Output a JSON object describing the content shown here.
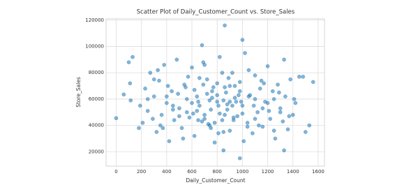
{
  "chart_data": {
    "type": "scatter",
    "title": "Scatter Plot of Daily_Customer_Count vs. Store_Sales",
    "x_label": "Daily_Customer_Count",
    "y_label": "Store_Sales",
    "color": "#1f77b4",
    "grid": true,
    "xlim": [
      -80,
      1650
    ],
    "ylim": [
      9000,
      121000
    ],
    "xticks": [
      0,
      200,
      400,
      600,
      800,
      1000,
      1200,
      1400,
      1600
    ],
    "yticks": [
      20000,
      40000,
      60000,
      80000,
      100000,
      120000
    ],
    "x": [
      0,
      60,
      100,
      130,
      110,
      115,
      180,
      190,
      1450,
      1480,
      1530,
      1560,
      1500,
      860,
      1000,
      980,
      850,
      1330,
      210,
      230,
      250,
      270,
      300,
      320,
      340,
      360,
      380,
      400,
      420,
      440,
      460,
      480,
      500,
      520,
      540,
      560,
      580,
      600,
      620,
      640,
      660,
      680,
      700,
      720,
      740,
      760,
      780,
      800,
      820,
      840,
      860,
      880,
      900,
      920,
      940,
      960,
      980,
      1000,
      1020,
      1040,
      1060,
      1080,
      1100,
      1120,
      1140,
      1160,
      1180,
      1200,
      1220,
      1240,
      1260,
      1280,
      1300,
      1320,
      1340,
      1360,
      1380,
      1400,
      1420,
      250,
      290,
      330,
      370,
      410,
      450,
      490,
      530,
      570,
      610,
      650,
      690,
      730,
      770,
      810,
      850,
      890,
      930,
      970,
      1010,
      1050,
      1090,
      1130,
      1170,
      1210,
      1250,
      1290,
      1330,
      1370,
      1410,
      300,
      350,
      400,
      450,
      500,
      550,
      600,
      650,
      700,
      750,
      800,
      850,
      900,
      950,
      1000,
      1050,
      1100,
      1150,
      1200,
      1250,
      1300,
      560,
      620,
      680,
      740,
      800,
      860,
      920,
      980,
      1040,
      1100,
      1160,
      660,
      700,
      760,
      820,
      880,
      940,
      720,
      780,
      840,
      900,
      640,
      690,
      750,
      810,
      870,
      930,
      990
    ],
    "values": [
      45500,
      63500,
      88000,
      92000,
      72000,
      59000,
      38000,
      55000,
      77000,
      77000,
      40000,
      73000,
      35000,
      116000,
      105000,
      15000,
      21000,
      21000,
      42000,
      68000,
      51000,
      80000,
      62000,
      35000,
      74000,
      48000,
      86000,
      57000,
      28000,
      66000,
      44000,
      90000,
      53000,
      38000,
      71000,
      60000,
      46000,
      84000,
      32000,
      62000,
      55000,
      101000,
      48000,
      75000,
      40000,
      66000,
      27000,
      58000,
      92000,
      44000,
      69000,
      52000,
      36000,
      80000,
      61000,
      47000,
      73000,
      55000,
      95000,
      42000,
      63000,
      34000,
      78000,
      50000,
      68000,
      39000,
      58000,
      85000,
      45000,
      66000,
      30000,
      71000,
      53000,
      43000,
      62000,
      37000,
      75000,
      48000,
      57000,
      60000,
      45000,
      82000,
      38000,
      70000,
      52000,
      64000,
      30000,
      77000,
      49000,
      58000,
      88000,
      41000,
      69000,
      34000,
      59000,
      76000,
      46000,
      63000,
      28000,
      82000,
      55000,
      40000,
      72000,
      51000,
      36000,
      65000,
      90000,
      47000,
      60000,
      75000,
      40000,
      62000,
      55000,
      47000,
      69000,
      57000,
      44000,
      86000,
      52000,
      63000,
      35000,
      70000,
      58000,
      49000,
      62000,
      45000,
      74000,
      57000,
      60000,
      50000,
      50000,
      67000,
      43000,
      59000,
      72000,
      48000,
      55000,
      66000,
      39000,
      60000,
      53000,
      76000,
      45000,
      61000,
      49000,
      56000,
      70000,
      64000,
      42000,
      80000,
      58000,
      51000,
      71000,
      38000,
      55000,
      65000,
      44000,
      58000
    ]
  }
}
